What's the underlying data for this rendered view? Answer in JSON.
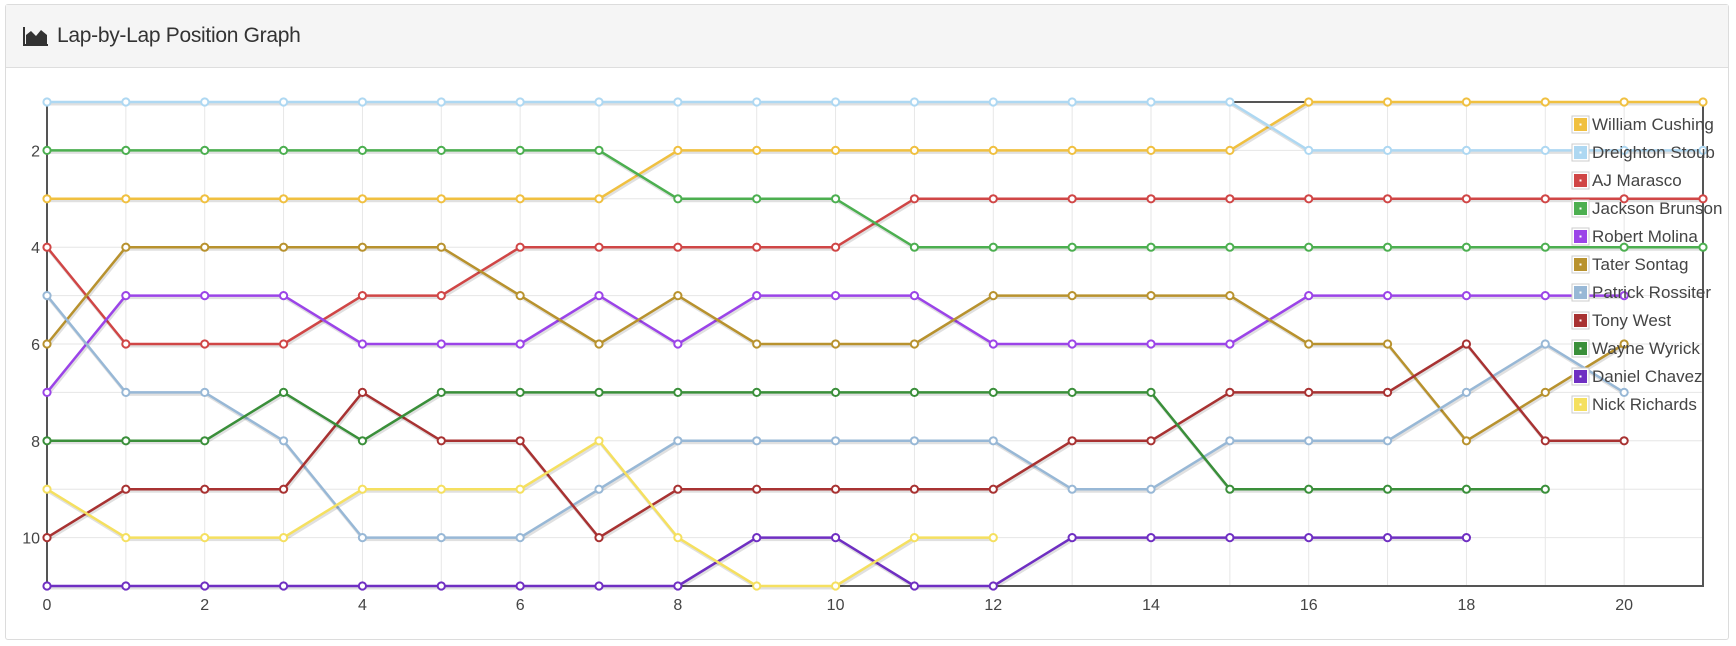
{
  "panel": {
    "title": "Lap-by-Lap Position Graph",
    "icon": "area-chart-icon"
  },
  "chart_data": {
    "type": "line",
    "title": "Lap-by-Lap Position Graph",
    "xlabel": "",
    "ylabel": "",
    "xlim": [
      0,
      21
    ],
    "ylim": [
      11,
      1
    ],
    "y_inverted": true,
    "grid": true,
    "legend_position": "top-right",
    "x_ticks": [
      "0",
      "2",
      "4",
      "6",
      "8",
      "10",
      "12",
      "14",
      "16",
      "18",
      "20"
    ],
    "y_ticks": [
      "2",
      "4",
      "6",
      "8",
      "10"
    ],
    "series": [
      {
        "name": "William Cushing",
        "color": "#f0c040",
        "values": [
          3,
          3,
          3,
          3,
          3,
          3,
          3,
          3,
          2,
          2,
          2,
          2,
          2,
          2,
          2,
          2,
          1,
          1,
          1,
          1,
          1,
          1
        ]
      },
      {
        "name": "Dreighton Stoub",
        "color": "#aed8f2",
        "values": [
          1,
          1,
          1,
          1,
          1,
          1,
          1,
          1,
          1,
          1,
          1,
          1,
          1,
          1,
          1,
          1,
          2,
          2,
          2,
          2,
          2,
          2
        ]
      },
      {
        "name": "AJ Marasco",
        "color": "#d04646",
        "values": [
          4,
          6,
          6,
          6,
          5,
          5,
          4,
          4,
          4,
          4,
          4,
          3,
          3,
          3,
          3,
          3,
          3,
          3,
          3,
          3,
          3,
          3
        ]
      },
      {
        "name": "Jackson Brunson",
        "color": "#4caf50",
        "values": [
          2,
          2,
          2,
          2,
          2,
          2,
          2,
          2,
          3,
          3,
          3,
          4,
          4,
          4,
          4,
          4,
          4,
          4,
          4,
          4,
          4,
          4
        ]
      },
      {
        "name": "Robert Molina",
        "color": "#9b44e8",
        "values": [
          7,
          5,
          5,
          5,
          6,
          6,
          6,
          5,
          6,
          5,
          5,
          5,
          6,
          6,
          6,
          6,
          5,
          5,
          5,
          5,
          5
        ]
      },
      {
        "name": "Tater Sontag",
        "color": "#b8922e",
        "values": [
          6,
          4,
          4,
          4,
          4,
          4,
          5,
          6,
          5,
          6,
          6,
          6,
          5,
          5,
          5,
          5,
          6,
          6,
          8,
          7,
          6
        ]
      },
      {
        "name": "Patrick Rossiter",
        "color": "#98b8d6",
        "values": [
          5,
          7,
          7,
          8,
          10,
          10,
          10,
          9,
          8,
          8,
          8,
          8,
          8,
          9,
          9,
          8,
          8,
          8,
          7,
          6,
          7
        ]
      },
      {
        "name": "Tony West",
        "color": "#a83232",
        "values": [
          10,
          9,
          9,
          9,
          7,
          8,
          8,
          10,
          9,
          9,
          9,
          9,
          9,
          8,
          8,
          7,
          7,
          7,
          6,
          8,
          8
        ]
      },
      {
        "name": "Wayne Wyrick",
        "color": "#3a8f3a",
        "values": [
          8,
          8,
          8,
          7,
          8,
          7,
          7,
          7,
          7,
          7,
          7,
          7,
          7,
          7,
          7,
          9,
          9,
          9,
          9,
          9
        ]
      },
      {
        "name": "Daniel Chavez",
        "color": "#6f2fc2",
        "values": [
          11,
          11,
          11,
          11,
          11,
          11,
          11,
          11,
          11,
          10,
          10,
          11,
          11,
          10,
          10,
          10,
          10,
          10,
          10
        ]
      },
      {
        "name": "Nick Richards",
        "color": "#f5e060",
        "values": [
          9,
          10,
          10,
          10,
          9,
          9,
          9,
          8,
          10,
          11,
          11,
          10,
          10
        ]
      }
    ]
  }
}
